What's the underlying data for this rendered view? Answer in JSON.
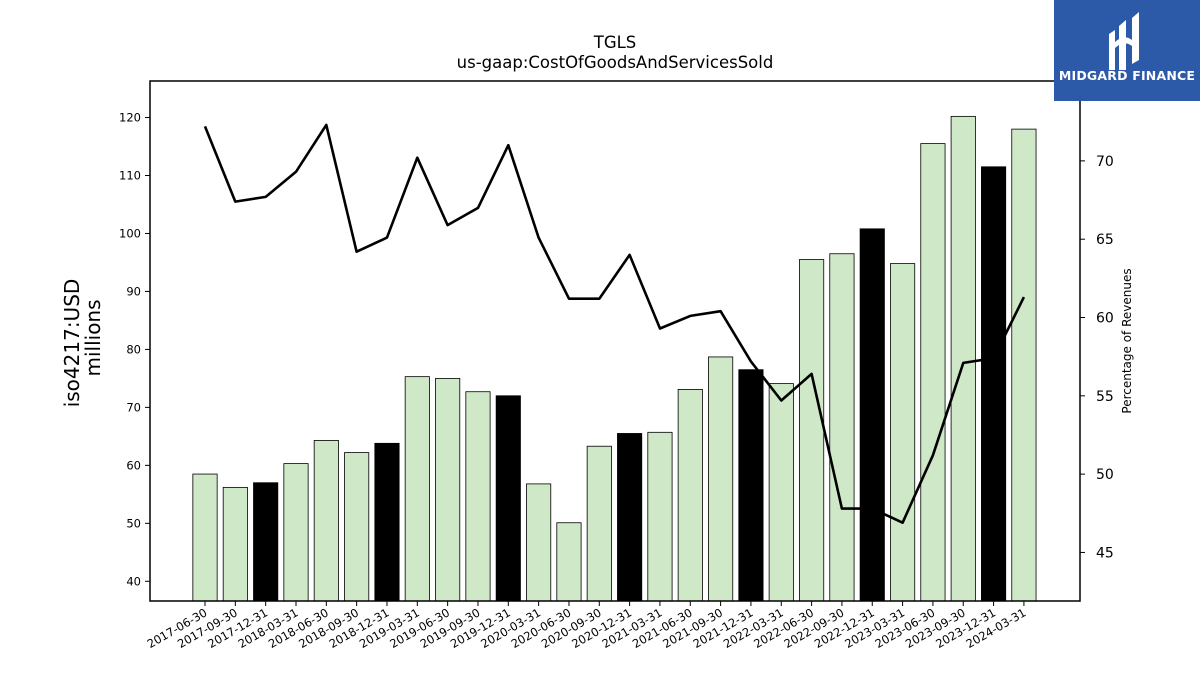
{
  "logo": {
    "text": "MIDGARD FINANCE",
    "background": "#2d5aa8"
  },
  "chart_data": {
    "type": "bar",
    "title": "TGLS",
    "subtitle": "us-gaap:CostOfGoodsAndServicesSold",
    "ylabel": "iso4217:USD",
    "ylabel_unit": "millions",
    "y2label": "Percentage of Revenues",
    "ylim": [
      36.6,
      126.3
    ],
    "y2lim": [
      41.9,
      75.1
    ],
    "yticks": [
      40,
      50,
      60,
      70,
      80,
      90,
      100,
      110,
      120
    ],
    "y2ticks": [
      45,
      50,
      55,
      60,
      65,
      70
    ],
    "grid": false,
    "categories": [
      "2017-06-30",
      "2017-09-30",
      "2017-12-31",
      "2018-03-31",
      "2018-06-30",
      "2018-09-30",
      "2018-12-31",
      "2019-03-31",
      "2019-06-30",
      "2019-09-30",
      "2019-12-31",
      "2020-03-31",
      "2020-06-30",
      "2020-09-30",
      "2020-12-31",
      "2021-03-31",
      "2021-06-30",
      "2021-09-30",
      "2021-12-31",
      "2022-03-31",
      "2022-06-30",
      "2022-09-30",
      "2022-12-31",
      "2023-03-31",
      "2023-06-30",
      "2023-09-30",
      "2023-12-31",
      "2024-03-31"
    ],
    "series": [
      {
        "type": "bar",
        "axis": "left",
        "values": [
          58.5,
          56.2,
          57.0,
          60.3,
          64.3,
          62.2,
          63.8,
          75.3,
          75.0,
          72.7,
          72.0,
          56.8,
          50.1,
          63.3,
          65.5,
          65.7,
          73.1,
          78.7,
          76.5,
          74.1,
          95.5,
          96.5,
          100.8,
          94.8,
          115.5,
          120.2,
          111.5,
          118.0
        ],
        "highlight": [
          false,
          false,
          true,
          false,
          false,
          false,
          true,
          false,
          false,
          false,
          true,
          false,
          false,
          false,
          true,
          false,
          false,
          false,
          true,
          false,
          false,
          false,
          true,
          false,
          false,
          false,
          true,
          false
        ]
      },
      {
        "type": "line",
        "axis": "right",
        "values": [
          72.2,
          67.4,
          67.7,
          69.3,
          72.3,
          64.2,
          65.1,
          70.2,
          65.9,
          67.0,
          71.0,
          65.1,
          61.2,
          61.2,
          64.0,
          59.3,
          60.1,
          60.4,
          57.2,
          54.7,
          56.4,
          47.8,
          47.8,
          46.9,
          51.2,
          57.1,
          57.4,
          61.3
        ]
      }
    ],
    "colors": {
      "bar": "#cfe8c8",
      "bar_highlight": "#000000",
      "bar_edge": "#000000",
      "line": "#000000"
    }
  }
}
